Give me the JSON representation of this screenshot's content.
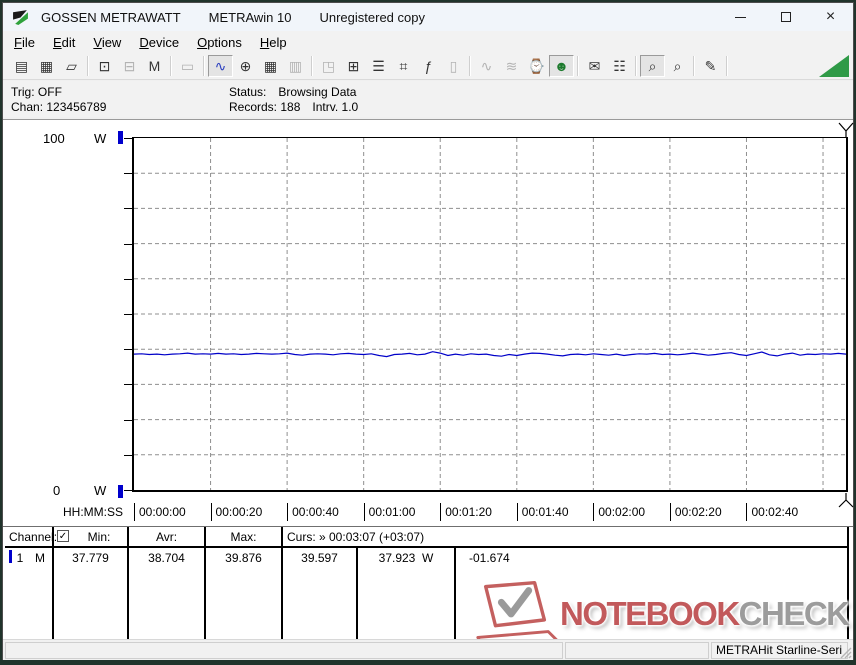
{
  "window": {
    "title_app": "GOSSEN METRAWATT",
    "title_program": "METRAwin 10",
    "title_license": "Unregistered copy",
    "controls": {
      "minimize": "minimize",
      "maximize": "maximize",
      "close": "×"
    }
  },
  "menu": {
    "items": [
      {
        "label": "File"
      },
      {
        "label": "Edit"
      },
      {
        "label": "View"
      },
      {
        "label": "Device"
      },
      {
        "label": "Options"
      },
      {
        "label": "Help"
      }
    ]
  },
  "toolbar": {
    "buttons": [
      {
        "name": "save",
        "glyph": "▤"
      },
      {
        "name": "save-as",
        "glyph": "▦"
      },
      {
        "name": "open-folder",
        "glyph": "▱"
      },
      {
        "sep": true
      },
      {
        "name": "read-from-device",
        "glyph": "⊡"
      },
      {
        "name": "write-to-device",
        "glyph": "⊟",
        "state": "disabled"
      },
      {
        "name": "memory-read",
        "glyph": "M"
      },
      {
        "sep": true
      },
      {
        "name": "device-display",
        "glyph": "▭",
        "state": "disabled"
      },
      {
        "sep": true
      },
      {
        "name": "chart-view",
        "glyph": "∿",
        "state": "pressed",
        "color": "#2b3fbf"
      },
      {
        "name": "crosshair-cursor",
        "glyph": "⊕"
      },
      {
        "name": "table-view",
        "glyph": "▦"
      },
      {
        "name": "bar-graph-view",
        "glyph": "▥",
        "state": "disabled"
      },
      {
        "sep": true
      },
      {
        "name": "export-data",
        "glyph": "◳",
        "state": "disabled"
      },
      {
        "name": "store-to-device",
        "glyph": "⊞"
      },
      {
        "name": "channel-settings",
        "glyph": "☰"
      },
      {
        "name": "device-monitor",
        "glyph": "⌗"
      },
      {
        "name": "formula",
        "glyph": "ƒ"
      },
      {
        "name": "device-config",
        "glyph": "▯",
        "state": "disabled"
      },
      {
        "sep": true
      },
      {
        "name": "wave-single",
        "glyph": "∿",
        "state": "disabled"
      },
      {
        "name": "wave-multi",
        "glyph": "≋",
        "state": "disabled"
      },
      {
        "name": "timer-record",
        "glyph": "⌚"
      },
      {
        "name": "live-monitor",
        "glyph": "☻",
        "state": "pressed",
        "color": "#1c7a2d"
      },
      {
        "sep": true
      },
      {
        "name": "print-report",
        "glyph": "✉"
      },
      {
        "name": "print",
        "glyph": "☷"
      },
      {
        "sep": true
      },
      {
        "name": "zoom-time",
        "glyph": "⌕",
        "state": "pressed"
      },
      {
        "name": "zoom-value",
        "glyph": "⌕"
      },
      {
        "sep": true
      },
      {
        "name": "comment",
        "glyph": "✎"
      },
      {
        "sep": true
      }
    ]
  },
  "status_panel": {
    "trig_label": "Trig:",
    "trig_value": "OFF",
    "chan_label": "Chan:",
    "chan_value": "123456789",
    "status_label": "Status:",
    "status_value": "Browsing Data",
    "records_label": "Records:",
    "records_value": "188",
    "interval_label": "Intrv.",
    "interval_value": "1.0"
  },
  "chart_data": {
    "type": "line",
    "title": "",
    "ylabel_unit": "W",
    "ylim": [
      0,
      100
    ],
    "y_gridline_step": 10,
    "y_axis_labels": {
      "top": "100",
      "top_unit": "W",
      "bottom": "0",
      "bottom_unit": "W"
    },
    "x_axis_format_label": "HH:MM:SS",
    "x_tick_labels": [
      "00:00:00",
      "00:00:20",
      "00:00:40",
      "00:01:00",
      "00:01:20",
      "00:01:40",
      "00:02:00",
      "00:02:20",
      "00:02:40"
    ],
    "x_tick_interval_seconds": 20,
    "x_visible_range_seconds": [
      0,
      186
    ],
    "records": 188,
    "interval_s": 1.0,
    "grid": {
      "style": "dashed",
      "color": "#8f8f8f"
    },
    "series": [
      {
        "name": "Channel 1 Power",
        "unit": "W",
        "color": "#0000c8",
        "min": 37.779,
        "avg": 38.704,
        "max": 39.876,
        "values": [
          38.6,
          38.7,
          38.5,
          38.6,
          38.4,
          38.6,
          38.7,
          38.9,
          38.6,
          38.7,
          38.6,
          38.8,
          38.6,
          38.7,
          38.5,
          38.6,
          38.8,
          38.7,
          38.6,
          38.7,
          38.9,
          38.5,
          38.3,
          38.6,
          38.7,
          38.6,
          38.4,
          38.7,
          38.8,
          38.6,
          38.5,
          38.7,
          38.2,
          37.9,
          38.5,
          38.6,
          38.8,
          38.4,
          38.6,
          39.3,
          38.9,
          38.2,
          38.6,
          38.3,
          38.7,
          38.5,
          38.6,
          38.2,
          38.0,
          38.5,
          38.2,
          38.6,
          38.9,
          38.8,
          38.6,
          38.3,
          38.1,
          38.5,
          38.6,
          38.4,
          38.7,
          38.5,
          38.3,
          38.6,
          38.2,
          38.5,
          38.7,
          38.6,
          38.8,
          38.5,
          38.6,
          38.4,
          38.6,
          38.9,
          38.6,
          38.3,
          38.5,
          38.8,
          39.0,
          38.5,
          38.2,
          38.7,
          39.2,
          38.4,
          38.1,
          38.6,
          38.9,
          38.3,
          38.6,
          38.5,
          38.7,
          38.6,
          38.8,
          38.6
        ]
      }
    ]
  },
  "table": {
    "header": {
      "channel": "Channel:",
      "checkbox_checked": true,
      "check_glyph": "✓",
      "min": "Min:",
      "avr": "Avr:",
      "max": "Max:",
      "cursor": "Curs: » 00:03:07 (+03:07)"
    },
    "row": {
      "channel_num": "1",
      "channel_mode": "M",
      "min": "37.779",
      "avr": "38.704",
      "max": "39.876",
      "cursor_a": "39.597",
      "cursor_b": "37.923  W",
      "delta": "-01.674"
    }
  },
  "watermark": {
    "text_primary": "NOTEBOOK",
    "text_secondary": "CHECK"
  },
  "statusbar": {
    "panel1": "",
    "panel2": "",
    "panel3": "METRAHit Starline-Seri"
  }
}
